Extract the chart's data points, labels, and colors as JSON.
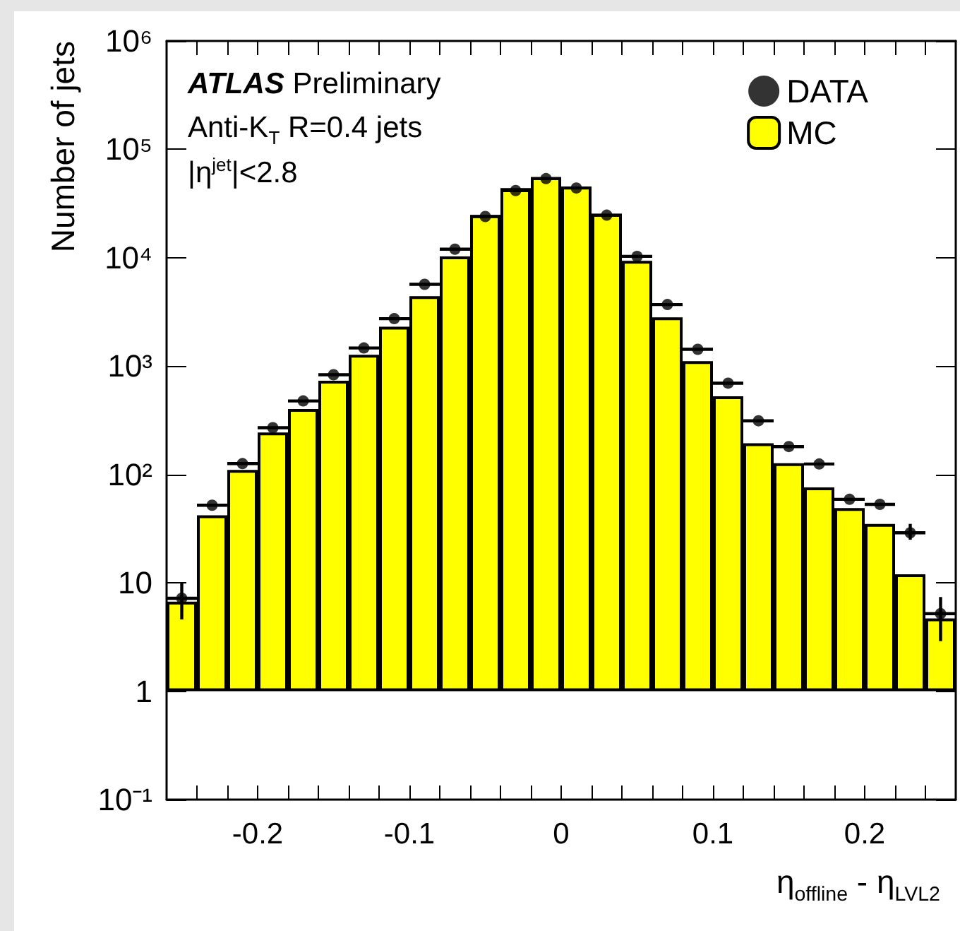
{
  "chart_data": {
    "type": "histogram",
    "xlabel": "η$_{offline}$ - η$_{LVL2}$",
    "ylabel": "Number of jets",
    "annotations": [
      "ATLAS Preliminary",
      "Anti-K$_{T}$ R=0.4 jets",
      "|η$^{jet}$|<2.8"
    ],
    "bins": [
      -0.26,
      -0.24,
      -0.22,
      -0.2,
      -0.18,
      -0.16,
      -0.14,
      -0.12,
      -0.1,
      -0.08,
      -0.06,
      -0.04,
      -0.02,
      0,
      0.02,
      0.04,
      0.06,
      0.08,
      0.1,
      0.12,
      0.14,
      0.16,
      0.18,
      0.2,
      0.22,
      0.24,
      0.26
    ],
    "series": [
      {
        "name": "DATA",
        "type": "scatter",
        "color": "#000000",
        "x": [
          -0.25,
          -0.23,
          -0.21,
          -0.19,
          -0.17,
          -0.15,
          -0.13,
          -0.11,
          -0.09,
          -0.07,
          -0.05,
          -0.03,
          -0.01,
          0.01,
          0.03,
          0.05,
          0.07,
          0.09,
          0.11,
          0.13,
          0.15,
          0.17,
          0.19,
          0.21,
          0.23,
          0.25
        ],
        "values": [
          7.2,
          52,
          126,
          270,
          477,
          832,
          1470,
          2740,
          5680,
          12000,
          24000,
          41700,
          53700,
          44000,
          24700,
          10300,
          3700,
          1430,
          696,
          313,
          181,
          125,
          59,
          53,
          29,
          5.2
        ],
        "errors": [
          [
            4.6,
            10.1
          ],
          null,
          null,
          null,
          null,
          null,
          null,
          null,
          null,
          null,
          null,
          null,
          null,
          null,
          null,
          null,
          null,
          null,
          null,
          null,
          null,
          null,
          null,
          null,
          [
            25,
            35
          ],
          [
            2.9,
            7.4
          ]
        ],
        "xerrors": [
          0.01,
          0.01,
          0.01,
          0.01,
          0.01,
          0.01,
          0.01,
          0.01,
          0.01,
          0.01,
          0.01,
          0.01,
          0.01,
          0.01,
          0.01,
          0.01,
          0.01,
          0.01,
          0.01,
          0.01,
          0.01,
          0.01,
          0.01,
          0.01,
          0.01,
          0.01
        ]
      },
      {
        "name": "MC",
        "color": "#ffff00",
        "values": [
          6.7,
          42,
          110,
          244,
          402,
          733,
          1270,
          2310,
          4420,
          10300,
          24700,
          44000,
          55500,
          45400,
          25400,
          9360,
          2820,
          1110,
          526,
          194,
          127,
          76,
          49,
          35,
          12,
          4.7
        ]
      }
    ],
    "xlim": [
      -0.26,
      0.26
    ],
    "xticks": [
      {
        "value": -0.24,
        "label": null
      },
      {
        "value": -0.22,
        "label": null
      },
      -0.2,
      {
        "value": -0.18,
        "label": null
      },
      {
        "value": -0.16,
        "label": null
      },
      {
        "value": -0.14,
        "label": null
      },
      {
        "value": -0.12,
        "label": null
      },
      -0.1,
      {
        "value": -0.08,
        "label": null
      },
      {
        "value": -0.06,
        "label": null
      },
      {
        "value": -0.04,
        "label": null
      },
      {
        "value": -0.02,
        "label": null
      },
      0,
      {
        "value": 0.02,
        "label": null
      },
      {
        "value": 0.04,
        "label": null
      },
      {
        "value": 0.06,
        "label": null
      },
      {
        "value": 0.08,
        "label": null
      },
      0.1,
      {
        "value": 0.12,
        "label": null
      },
      {
        "value": 0.14,
        "label": null
      },
      {
        "value": 0.16,
        "label": null
      },
      {
        "value": 0.18,
        "label": null
      },
      0.2,
      {
        "value": 0.22,
        "label": null
      },
      {
        "value": 0.24,
        "label": null
      }
    ],
    "ylim": [
      0.1,
      1000000
    ],
    "yticks": [
      {
        "value": 0.1,
        "label": "10⁻¹"
      },
      1,
      10,
      {
        "value": 100,
        "label": "10²"
      },
      {
        "value": 1000,
        "label": "10³"
      },
      {
        "value": 10000,
        "label": "10⁴"
      },
      {
        "value": 100000,
        "label": "10⁵"
      },
      {
        "value": 1000000,
        "label": "10⁶"
      }
    ],
    "log": true,
    "grid": false,
    "legend": "top right",
    "marker": "circle"
  }
}
